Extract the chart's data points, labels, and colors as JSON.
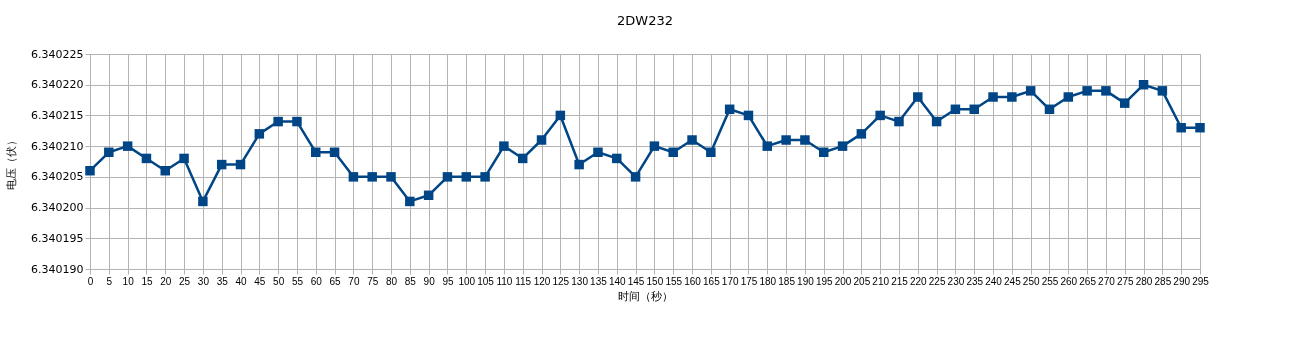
{
  "chart_data": {
    "type": "line",
    "title": "2DW232",
    "xlabel": "时间（秒）",
    "ylabel": "电压（伏）",
    "x": [
      0,
      5,
      10,
      15,
      20,
      25,
      30,
      35,
      40,
      45,
      50,
      55,
      60,
      65,
      70,
      75,
      80,
      85,
      90,
      95,
      100,
      105,
      110,
      115,
      120,
      125,
      130,
      135,
      140,
      145,
      150,
      155,
      160,
      165,
      170,
      175,
      180,
      185,
      190,
      195,
      200,
      205,
      210,
      215,
      220,
      225,
      230,
      235,
      240,
      245,
      250,
      255,
      260,
      265,
      270,
      275,
      280,
      285,
      290,
      295
    ],
    "series": [
      {
        "color": "#004586",
        "values": [
          6.340206,
          6.340209,
          6.34021,
          6.340208,
          6.340206,
          6.340208,
          6.340201,
          6.340207,
          6.340207,
          6.340212,
          6.340214,
          6.340214,
          6.340209,
          6.340209,
          6.340205,
          6.340205,
          6.340205,
          6.340201,
          6.340202,
          6.340205,
          6.340205,
          6.340205,
          6.34021,
          6.340208,
          6.340211,
          6.340215,
          6.340207,
          6.340209,
          6.340208,
          6.340205,
          6.34021,
          6.340209,
          6.340211,
          6.340209,
          6.340216,
          6.340215,
          6.34021,
          6.340211,
          6.340211,
          6.340209,
          6.34021,
          6.340212,
          6.340215,
          6.340214,
          6.340218,
          6.340214,
          6.340216,
          6.340216,
          6.340218,
          6.340218,
          6.340219,
          6.340216,
          6.340218,
          6.340219,
          6.340219,
          6.340217,
          6.34022,
          6.340219,
          6.340213,
          6.340213
        ]
      }
    ],
    "xlim": [
      0,
      295
    ],
    "xticks": [
      0,
      5,
      10,
      15,
      20,
      25,
      30,
      35,
      40,
      45,
      50,
      55,
      60,
      65,
      70,
      75,
      80,
      85,
      90,
      95,
      100,
      105,
      110,
      115,
      120,
      125,
      130,
      135,
      140,
      145,
      150,
      155,
      160,
      165,
      170,
      175,
      180,
      185,
      190,
      195,
      200,
      205,
      210,
      215,
      220,
      225,
      230,
      235,
      240,
      245,
      250,
      255,
      260,
      265,
      270,
      275,
      280,
      285,
      290,
      295
    ],
    "ylim": [
      6.34019,
      6.340225
    ],
    "yticks": [
      {
        "value": 6.34019,
        "label": "6.340190"
      },
      {
        "value": 6.340195,
        "label": "6.340195"
      },
      {
        "value": 6.3402,
        "label": "6.340200"
      },
      {
        "value": 6.340205,
        "label": "6.340205"
      },
      {
        "value": 6.34021,
        "label": "6.340210"
      },
      {
        "value": 6.340215,
        "label": "6.340215"
      },
      {
        "value": 6.34022,
        "label": "6.340220"
      },
      {
        "value": 6.340225,
        "label": "6.340225"
      }
    ],
    "grid": true,
    "marker": "square",
    "line_style": "solid"
  }
}
